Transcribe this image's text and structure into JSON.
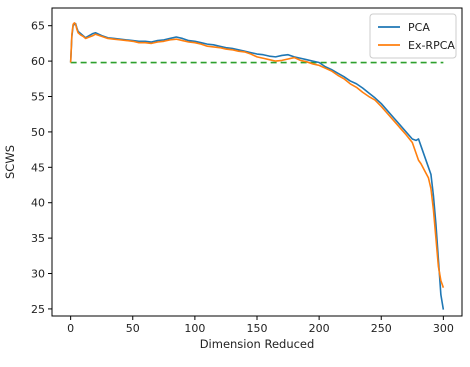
{
  "chart_data": {
    "type": "line",
    "xlabel": "Dimension Reduced",
    "ylabel": "SCWS",
    "xlim": [
      -15,
      315
    ],
    "ylim": [
      24,
      67.5
    ],
    "xticks": [
      0,
      50,
      100,
      150,
      200,
      250,
      300
    ],
    "yticks": [
      25,
      30,
      35,
      40,
      45,
      50,
      55,
      60,
      65
    ],
    "legend_position": "top-right",
    "grid": false,
    "baseline": {
      "y": 59.8,
      "x_range": [
        0,
        300
      ],
      "color": "#2ca02c",
      "style": "dashed"
    },
    "series": [
      {
        "name": "PCA",
        "color": "#1f77b4",
        "points": [
          [
            0,
            59.8
          ],
          [
            1,
            63.5
          ],
          [
            2,
            65.0
          ],
          [
            3,
            65.2
          ],
          [
            4,
            65.3
          ],
          [
            5,
            64.7
          ],
          [
            6,
            64.2
          ],
          [
            8,
            63.9
          ],
          [
            10,
            63.6
          ],
          [
            12,
            63.3
          ],
          [
            15,
            63.6
          ],
          [
            18,
            63.9
          ],
          [
            20,
            64.0
          ],
          [
            25,
            63.6
          ],
          [
            30,
            63.3
          ],
          [
            35,
            63.2
          ],
          [
            40,
            63.1
          ],
          [
            45,
            63.0
          ],
          [
            50,
            62.9
          ],
          [
            55,
            62.8
          ],
          [
            60,
            62.8
          ],
          [
            65,
            62.7
          ],
          [
            70,
            62.9
          ],
          [
            75,
            63.0
          ],
          [
            80,
            63.2
          ],
          [
            85,
            63.4
          ],
          [
            90,
            63.2
          ],
          [
            95,
            62.9
          ],
          [
            100,
            62.8
          ],
          [
            105,
            62.6
          ],
          [
            110,
            62.4
          ],
          [
            115,
            62.3
          ],
          [
            120,
            62.1
          ],
          [
            125,
            61.9
          ],
          [
            130,
            61.8
          ],
          [
            135,
            61.6
          ],
          [
            140,
            61.4
          ],
          [
            145,
            61.2
          ],
          [
            150,
            61.0
          ],
          [
            155,
            60.9
          ],
          [
            160,
            60.7
          ],
          [
            165,
            60.6
          ],
          [
            170,
            60.8
          ],
          [
            175,
            60.9
          ],
          [
            180,
            60.6
          ],
          [
            185,
            60.4
          ],
          [
            190,
            60.2
          ],
          [
            195,
            60.0
          ],
          [
            200,
            59.8
          ],
          [
            205,
            59.2
          ],
          [
            210,
            58.8
          ],
          [
            215,
            58.3
          ],
          [
            220,
            57.8
          ],
          [
            225,
            57.2
          ],
          [
            230,
            56.8
          ],
          [
            235,
            56.2
          ],
          [
            240,
            55.5
          ],
          [
            245,
            54.8
          ],
          [
            250,
            54.0
          ],
          [
            255,
            53.0
          ],
          [
            260,
            52.0
          ],
          [
            265,
            51.0
          ],
          [
            270,
            50.0
          ],
          [
            275,
            49.0
          ],
          [
            278,
            48.8
          ],
          [
            280,
            49.0
          ],
          [
            282,
            48.0
          ],
          [
            285,
            46.5
          ],
          [
            288,
            45.0
          ],
          [
            290,
            44.0
          ],
          [
            292,
            41.0
          ],
          [
            294,
            37.0
          ],
          [
            296,
            32.0
          ],
          [
            298,
            27.0
          ],
          [
            300,
            24.9
          ]
        ]
      },
      {
        "name": "Ex-RPCA",
        "color": "#ff7f0e",
        "points": [
          [
            0,
            59.8
          ],
          [
            1,
            63.8
          ],
          [
            2,
            65.2
          ],
          [
            3,
            65.4
          ],
          [
            4,
            65.2
          ],
          [
            5,
            64.5
          ],
          [
            6,
            64.0
          ],
          [
            8,
            63.7
          ],
          [
            10,
            63.5
          ],
          [
            12,
            63.2
          ],
          [
            15,
            63.4
          ],
          [
            18,
            63.6
          ],
          [
            20,
            63.8
          ],
          [
            25,
            63.5
          ],
          [
            30,
            63.2
          ],
          [
            35,
            63.1
          ],
          [
            40,
            63.0
          ],
          [
            45,
            62.9
          ],
          [
            50,
            62.8
          ],
          [
            55,
            62.6
          ],
          [
            60,
            62.6
          ],
          [
            65,
            62.5
          ],
          [
            70,
            62.7
          ],
          [
            75,
            62.8
          ],
          [
            80,
            63.0
          ],
          [
            85,
            63.1
          ],
          [
            90,
            62.9
          ],
          [
            95,
            62.7
          ],
          [
            100,
            62.6
          ],
          [
            105,
            62.4
          ],
          [
            110,
            62.1
          ],
          [
            115,
            62.0
          ],
          [
            120,
            61.9
          ],
          [
            125,
            61.7
          ],
          [
            130,
            61.6
          ],
          [
            135,
            61.4
          ],
          [
            140,
            61.3
          ],
          [
            145,
            61.0
          ],
          [
            150,
            60.6
          ],
          [
            155,
            60.4
          ],
          [
            160,
            60.2
          ],
          [
            165,
            60.0
          ],
          [
            170,
            60.1
          ],
          [
            175,
            60.3
          ],
          [
            180,
            60.5
          ],
          [
            185,
            60.1
          ],
          [
            190,
            59.9
          ],
          [
            195,
            59.6
          ],
          [
            200,
            59.4
          ],
          [
            205,
            59.0
          ],
          [
            210,
            58.6
          ],
          [
            215,
            58.0
          ],
          [
            220,
            57.5
          ],
          [
            225,
            56.8
          ],
          [
            230,
            56.3
          ],
          [
            235,
            55.6
          ],
          [
            240,
            55.0
          ],
          [
            245,
            54.5
          ],
          [
            250,
            53.6
          ],
          [
            255,
            52.6
          ],
          [
            260,
            51.6
          ],
          [
            265,
            50.6
          ],
          [
            270,
            49.6
          ],
          [
            275,
            48.5
          ],
          [
            278,
            47.0
          ],
          [
            280,
            46.0
          ],
          [
            282,
            45.5
          ],
          [
            285,
            44.5
          ],
          [
            288,
            43.5
          ],
          [
            290,
            42.0
          ],
          [
            292,
            39.0
          ],
          [
            294,
            35.0
          ],
          [
            296,
            31.0
          ],
          [
            298,
            29.0
          ],
          [
            300,
            28.0
          ]
        ]
      }
    ]
  }
}
